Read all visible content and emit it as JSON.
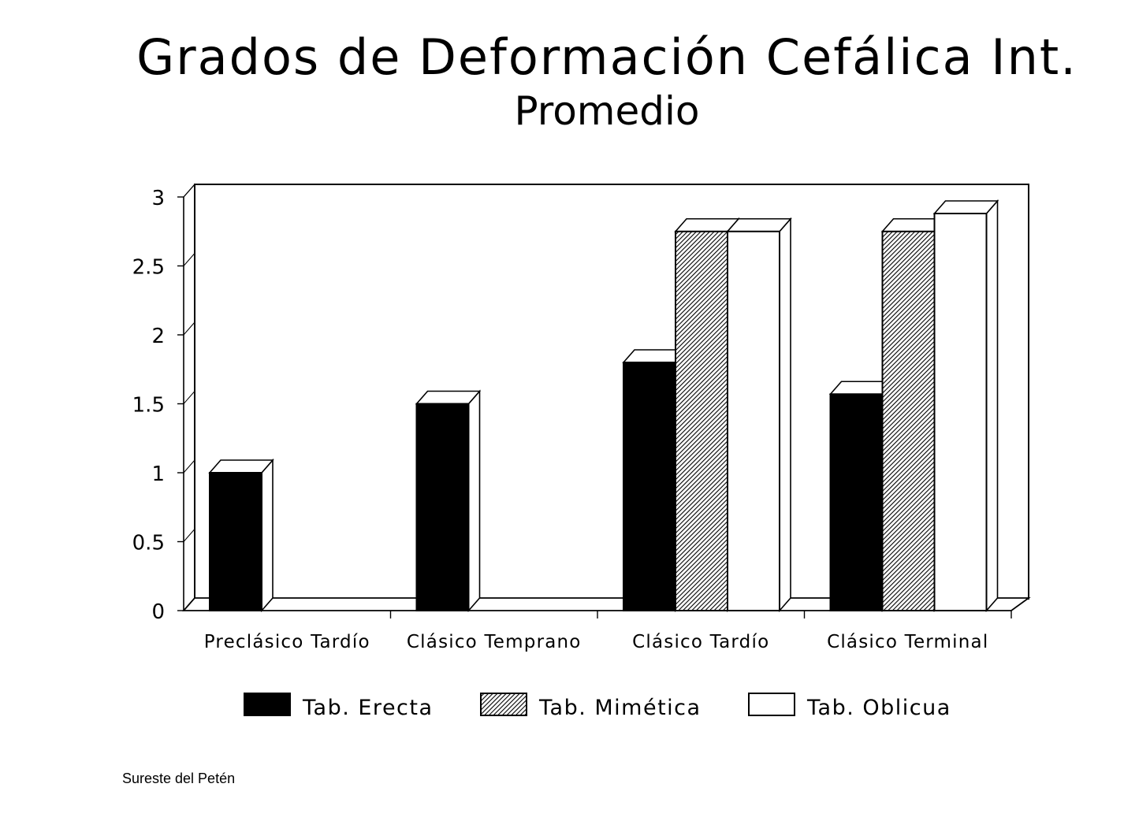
{
  "chart_data": {
    "type": "bar",
    "title": "Grados de Deformación Cefálica Int.",
    "subtitle": "Promedio",
    "categories": [
      "Preclásico Tardío",
      "Clásico Temprano",
      "Clásico Tardío",
      "Clásico Terminal"
    ],
    "series": [
      {
        "name": "Tab. Erecta",
        "values": [
          1.0,
          1.5,
          1.8,
          1.57
        ],
        "color": "#000000",
        "pattern": "solid"
      },
      {
        "name": "Tab. Mimética",
        "values": [
          null,
          null,
          2.75,
          2.75
        ],
        "color": "#555555",
        "pattern": "hatched"
      },
      {
        "name": "Tab. Oblicua",
        "values": [
          null,
          null,
          2.75,
          2.88
        ],
        "color": "#ffffff",
        "pattern": "outline"
      }
    ],
    "y_ticks": [
      "0",
      "0.5",
      "1",
      "1.5",
      "2",
      "2.5",
      "3"
    ],
    "ylim": [
      0,
      3
    ],
    "grid": false,
    "legend_position": "bottom",
    "style": "3d"
  },
  "footnote": "Sureste del Petén"
}
